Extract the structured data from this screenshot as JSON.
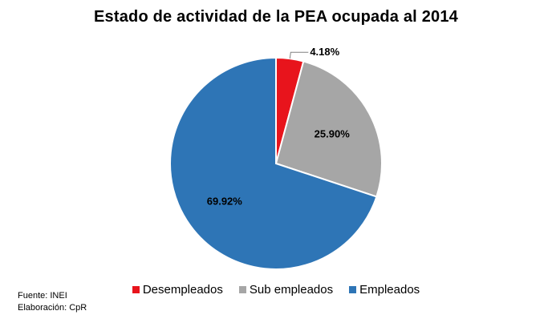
{
  "chart_data": {
    "type": "pie",
    "title": "Estado de actividad de la PEA ocupada al 2014",
    "slices": [
      {
        "label": "Desempleados",
        "value": 4.18,
        "value_label": "4.18%",
        "color": "#e8141c"
      },
      {
        "label": "Sub empleados",
        "value": 25.9,
        "value_label": "25.90%",
        "color": "#a6a6a6"
      },
      {
        "label": "Empleados",
        "value": 69.92,
        "value_label": "69.92%",
        "color": "#2e75b6"
      }
    ],
    "start_angle": "12 o'clock",
    "direction": "clockwise",
    "legend_position": "bottom"
  },
  "footer": {
    "source": "Fuente: INEI",
    "credit": "Elaboración: CpR"
  }
}
